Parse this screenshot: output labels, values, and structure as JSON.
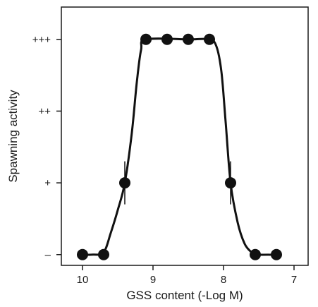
{
  "chart_data": {
    "type": "line",
    "title": "",
    "xlabel": "GSS content (-Log M)",
    "ylabel": "Spawning activity",
    "x_reversed": true,
    "xlim": [
      10.3,
      6.8
    ],
    "ylim": [
      -0.15,
      3.45
    ],
    "x_ticks": [
      10,
      9,
      8,
      7
    ],
    "x_tick_labels": [
      "10",
      "9",
      "8",
      "7"
    ],
    "y_ticks": [
      0,
      1,
      2,
      3
    ],
    "y_tick_labels": [
      "–",
      "+",
      "++",
      "+++"
    ],
    "grid": false,
    "series": [
      {
        "points": [
          {
            "x": 10.0,
            "y": 0,
            "err": 0
          },
          {
            "x": 9.7,
            "y": 0,
            "err": 0
          },
          {
            "x": 9.4,
            "y": 1,
            "err": 0.3
          },
          {
            "x": 9.1,
            "y": 3,
            "err": 0
          },
          {
            "x": 8.8,
            "y": 3,
            "err": 0
          },
          {
            "x": 8.5,
            "y": 3,
            "err": 0
          },
          {
            "x": 8.2,
            "y": 3,
            "err": 0
          },
          {
            "x": 7.9,
            "y": 1,
            "err": 0.3
          },
          {
            "x": 7.55,
            "y": 0,
            "err": 0
          },
          {
            "x": 7.25,
            "y": 0,
            "err": 0
          }
        ],
        "curve": [
          [
            10.0,
            0
          ],
          [
            9.85,
            0
          ],
          [
            9.7,
            0.03
          ],
          [
            9.6,
            0.3
          ],
          [
            9.5,
            0.62
          ],
          [
            9.4,
            1.0
          ],
          [
            9.3,
            1.7
          ],
          [
            9.23,
            2.4
          ],
          [
            9.17,
            2.85
          ],
          [
            9.1,
            3.0
          ],
          [
            8.5,
            3.0
          ],
          [
            8.2,
            3.0
          ],
          [
            8.1,
            2.9
          ],
          [
            8.03,
            2.55
          ],
          [
            7.97,
            1.85
          ],
          [
            7.9,
            1.0
          ],
          [
            7.8,
            0.45
          ],
          [
            7.7,
            0.15
          ],
          [
            7.6,
            0.03
          ],
          [
            7.55,
            0
          ],
          [
            7.25,
            0
          ]
        ]
      }
    ]
  }
}
